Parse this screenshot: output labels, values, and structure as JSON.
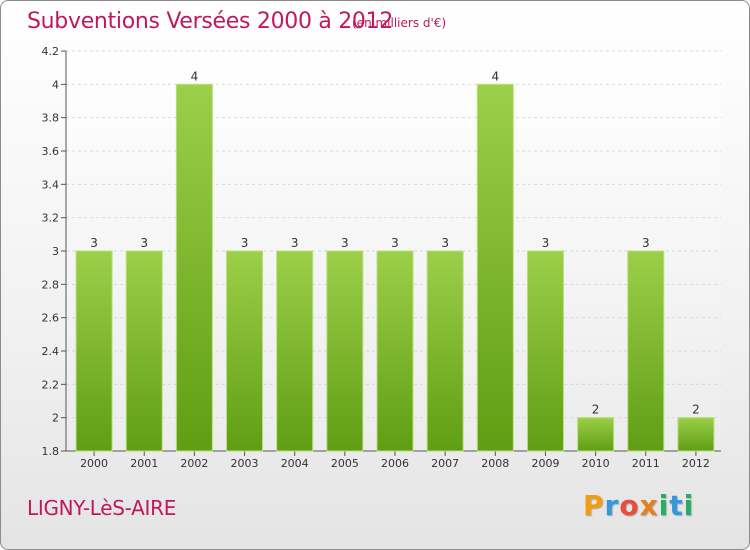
{
  "header": {
    "title": "Subventions Versées 2000 à 2012",
    "unit": "(en milliers d'€)"
  },
  "footer": {
    "commune": "LIGNY-LèS-AIRE",
    "brand_letters": [
      "P",
      "r",
      "o",
      "x",
      "i",
      "t",
      "i"
    ],
    "brand_colors": [
      "#f39c12",
      "#3498db",
      "#e74c3c",
      "#e67e22",
      "#27ae60",
      "#3498db",
      "#27ae60"
    ]
  },
  "chart_data": {
    "type": "bar",
    "categories": [
      "2000",
      "2001",
      "2002",
      "2003",
      "2004",
      "2005",
      "2006",
      "2007",
      "2008",
      "2009",
      "2010",
      "2011",
      "2012"
    ],
    "values": [
      3,
      3,
      4,
      3,
      3,
      3,
      3,
      3,
      4,
      3,
      2,
      3,
      2
    ],
    "data_labels": [
      "3",
      "3",
      "4",
      "3",
      "3",
      "3",
      "3",
      "3",
      "4",
      "3",
      "2",
      "3",
      "2"
    ],
    "title": "Subventions Versées 2000 à 2012",
    "subtitle": "(en milliers d'€)",
    "ylim": [
      1.8,
      4.2
    ],
    "yticks": [
      1.8,
      2,
      2.2,
      2.4,
      2.6,
      2.8,
      3,
      3.2,
      3.4,
      3.6,
      3.8,
      4,
      4.2
    ],
    "ytick_labels": [
      "1.8",
      "2",
      "2.2",
      "2.4",
      "2.6",
      "2.8",
      "3",
      "3.2",
      "3.4",
      "3.6",
      "3.8",
      "4",
      "4.2"
    ],
    "grid": true,
    "bar_color_top": "#9ccf4a",
    "bar_color_bottom": "#5f9e12"
  }
}
